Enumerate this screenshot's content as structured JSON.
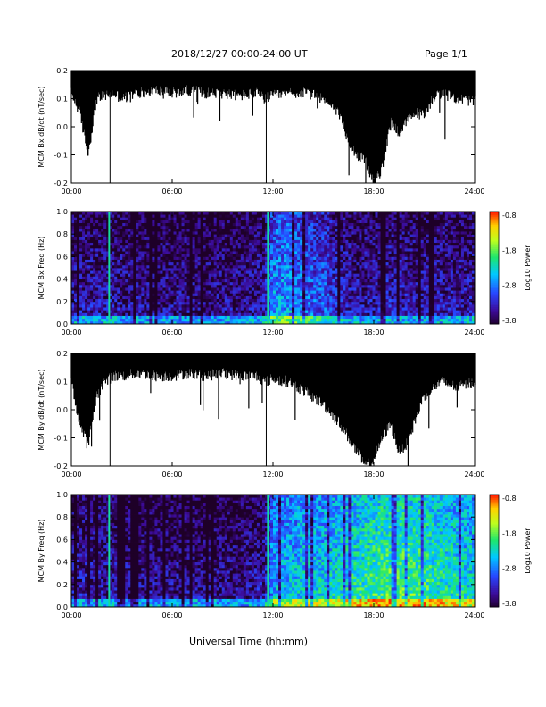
{
  "header": {
    "date_range": "2018/12/27  00:00-24:00 UT",
    "page": "Page 1/1"
  },
  "x_axis_title": "Universal Time (hh:mm)",
  "colors": {
    "trace": "#000000",
    "spectrogram_scale": [
      "#2a0040",
      "#3a0e9a",
      "#2060ff",
      "#00c8ff",
      "#20e870",
      "#c8ff20",
      "#ffd000",
      "#ff2000"
    ]
  },
  "chart_data": [
    {
      "type": "area",
      "ylabel": "MCM Bx dB/dt (nT/sec)",
      "xlabel": "",
      "x_ticks": [
        "00:00",
        "06:00",
        "12:00",
        "18:00",
        "24:00"
      ],
      "y_ticks": [
        "-0.2",
        "-0.1",
        "0.0",
        "0.1",
        "0.2"
      ],
      "xlim": [
        0,
        24
      ],
      "ylim": [
        -0.2,
        0.2
      ],
      "series": [
        {
          "hours": [
            0,
            0.5,
            1,
            1.5,
            2,
            2.5,
            3,
            3.5,
            4,
            5,
            6,
            7,
            8,
            9,
            10,
            11,
            11.5,
            12,
            13,
            14,
            15,
            15.5,
            16,
            16.5,
            17,
            17.5,
            18,
            18.5,
            19,
            19.5,
            20,
            20.5,
            21,
            21.5,
            22,
            23,
            24
          ],
          "upper_envelope": [
            0.2,
            0.2,
            0.2,
            0.2,
            0.2,
            0.2,
            0.2,
            0.2,
            0.2,
            0.2,
            0.2,
            0.2,
            0.2,
            0.2,
            0.2,
            0.2,
            0.2,
            0.2,
            0.2,
            0.2,
            0.2,
            0.2,
            0.2,
            0.2,
            0.2,
            0.2,
            0.2,
            0.2,
            0.2,
            0.2,
            0.2,
            0.2,
            0.2,
            0.2,
            0.2,
            0.2,
            0.2
          ],
          "lower_envelope": [
            0.12,
            0.05,
            -0.1,
            0.1,
            0.11,
            0.12,
            0.1,
            0.11,
            0.12,
            0.13,
            0.12,
            0.13,
            0.12,
            0.12,
            0.11,
            0.12,
            0.1,
            0.11,
            0.12,
            0.12,
            0.1,
            0.08,
            0.04,
            -0.05,
            -0.1,
            -0.12,
            -0.2,
            -0.15,
            0.02,
            -0.02,
            0.02,
            0.05,
            0.04,
            0.1,
            0.12,
            0.1,
            0.09
          ]
        }
      ]
    },
    {
      "type": "heatmap",
      "ylabel": "MCM Bx Freq (Hz)",
      "xlabel": "",
      "x_ticks": [
        "00:00",
        "06:00",
        "12:00",
        "18:00",
        "24:00"
      ],
      "y_ticks": [
        "0.0",
        "0.2",
        "0.4",
        "0.6",
        "0.8",
        "1.0"
      ],
      "xlim": [
        0,
        24
      ],
      "ylim": [
        0,
        1
      ],
      "colorbar": {
        "label": "Log10 Power",
        "ticks": [
          "-0.8",
          "-1.8",
          "-2.8",
          "-3.8"
        ],
        "range": [
          -3.8,
          -0.8
        ]
      },
      "activity_profile": {
        "hours": [
          0,
          2,
          4,
          6,
          8,
          10,
          11.5,
          12,
          13,
          14,
          15,
          16,
          17,
          18,
          19,
          20,
          21,
          22,
          23,
          24
        ],
        "mean_log_power": [
          -3.3,
          -3.3,
          -3.4,
          -3.4,
          -3.4,
          -3.4,
          -3.3,
          -2.6,
          -2.6,
          -2.8,
          -2.9,
          -3.2,
          -3.3,
          -3.3,
          -3.2,
          -3.3,
          -3.3,
          -3.3,
          -3.3,
          -3.3
        ]
      }
    },
    {
      "type": "area",
      "ylabel": "MCM By dB/dt (nT/sec)",
      "xlabel": "",
      "x_ticks": [
        "00:00",
        "06:00",
        "12:00",
        "18:00",
        "24:00"
      ],
      "y_ticks": [
        "-0.2",
        "-0.1",
        "0.0",
        "0.1",
        "0.2"
      ],
      "xlim": [
        0,
        24
      ],
      "ylim": [
        -0.2,
        0.2
      ],
      "series": [
        {
          "hours": [
            0,
            0.5,
            1,
            1.5,
            2,
            2.5,
            3,
            4,
            5,
            6,
            7,
            8,
            9,
            10,
            11,
            11.5,
            12,
            13,
            14,
            15,
            16,
            16.5,
            17,
            17.5,
            18,
            18.5,
            19,
            19.5,
            20,
            20.5,
            21,
            22,
            23,
            24
          ],
          "upper_envelope": [
            0.2,
            0.2,
            0.2,
            0.2,
            0.2,
            0.2,
            0.2,
            0.2,
            0.2,
            0.2,
            0.2,
            0.2,
            0.2,
            0.2,
            0.2,
            0.2,
            0.2,
            0.2,
            0.2,
            0.2,
            0.2,
            0.2,
            0.2,
            0.2,
            0.2,
            0.2,
            0.2,
            0.2,
            0.2,
            0.2,
            0.2,
            0.2,
            0.2,
            0.2
          ],
          "lower_envelope": [
            0.1,
            -0.05,
            -0.13,
            0.05,
            0.1,
            0.12,
            0.12,
            0.13,
            0.12,
            0.12,
            0.13,
            0.12,
            0.13,
            0.12,
            0.12,
            0.1,
            0.11,
            0.1,
            0.06,
            0.02,
            -0.05,
            -0.1,
            -0.15,
            -0.2,
            -0.18,
            -0.1,
            -0.05,
            -0.15,
            -0.12,
            -0.03,
            0.05,
            0.1,
            0.08,
            0.1
          ]
        }
      ]
    },
    {
      "type": "heatmap",
      "ylabel": "MCM By Freq (Hz)",
      "xlabel": "",
      "x_ticks": [
        "00:00",
        "06:00",
        "12:00",
        "18:00",
        "24:00"
      ],
      "y_ticks": [
        "0.0",
        "0.2",
        "0.4",
        "0.6",
        "0.8",
        "1.0"
      ],
      "xlim": [
        0,
        24
      ],
      "ylim": [
        0,
        1
      ],
      "colorbar": {
        "label": "Log10 Power",
        "ticks": [
          "-0.8",
          "-1.8",
          "-2.8",
          "-3.8"
        ],
        "range": [
          -3.8,
          -0.8
        ]
      },
      "activity_profile": {
        "hours": [
          0,
          2,
          4,
          6,
          8,
          10,
          11.5,
          12,
          13,
          14,
          15,
          16,
          17,
          18,
          19,
          20,
          21,
          22,
          23,
          24
        ],
        "mean_log_power": [
          -3.3,
          -3.3,
          -3.4,
          -3.4,
          -3.4,
          -3.4,
          -3.3,
          -2.5,
          -2.4,
          -2.3,
          -2.3,
          -2.2,
          -2.1,
          -2.0,
          -1.9,
          -1.9,
          -2.0,
          -2.1,
          -2.2,
          -2.3
        ]
      }
    }
  ]
}
